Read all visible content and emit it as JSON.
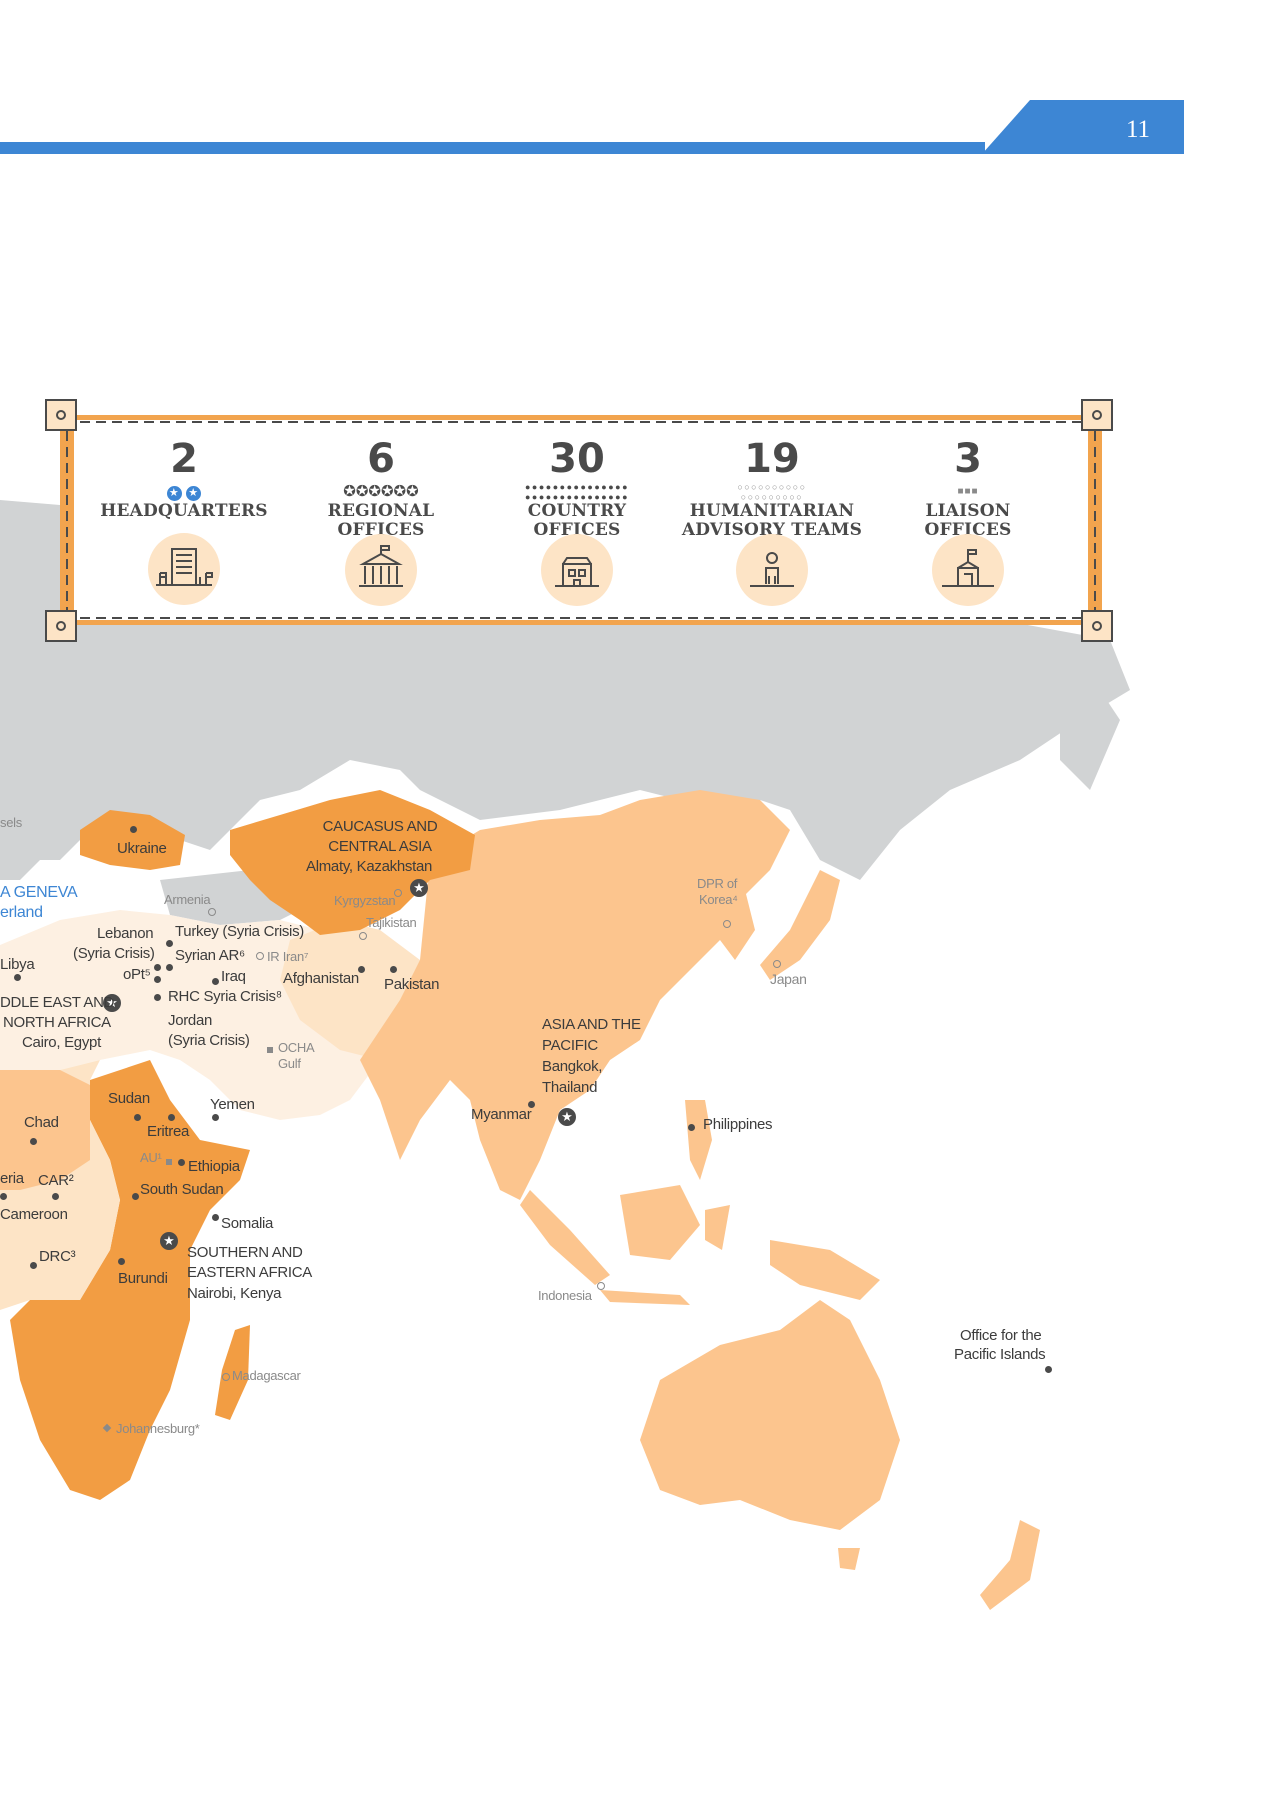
{
  "page": {
    "number": "11",
    "accent_color": "#3d86d4"
  },
  "legend": {
    "frame_color": "#f2a44e",
    "items": [
      {
        "count": "2",
        "label_line1": "HEADQUARTERS",
        "label_line2": "",
        "marker": "blue-star",
        "icon": "headquarters-building-icon",
        "mark_count": 2
      },
      {
        "count": "6",
        "label_line1": "REGIONAL",
        "label_line2": "OFFICES",
        "marker": "star",
        "icon": "regional-office-building-icon",
        "mark_count": 6
      },
      {
        "count": "30",
        "label_line1": "COUNTRY",
        "label_line2": "OFFICES",
        "marker": "dot",
        "icon": "country-office-building-icon",
        "mark_count": 30
      },
      {
        "count": "19",
        "label_line1": "HUMANITARIAN",
        "label_line2": "ADVISORY TEAMS",
        "marker": "open-dot",
        "icon": "advisor-person-icon",
        "mark_count": 19
      },
      {
        "count": "3",
        "label_line1": "LIAISON",
        "label_line2": "OFFICES",
        "marker": "square",
        "icon": "liaison-office-icon",
        "mark_count": 3
      }
    ]
  },
  "map": {
    "colors": {
      "land_grey": "#d1d3d4",
      "region_dark": "#f29d43",
      "region_mid": "#fcc58e",
      "region_light": "#fde4c6",
      "region_pale": "#fdf0e2"
    },
    "labels": {
      "brussels": "sels",
      "geneva_1": "A GENEVA",
      "geneva_2": "erland",
      "ukraine": "Ukraine",
      "armenia": "Armenia",
      "libya": "Libya",
      "lebanon_1": "Lebanon",
      "lebanon_2": "(Syria Crisis)",
      "turkey": "Turkey (Syria Crisis)",
      "syria": "Syrian AR⁶",
      "iran": "IR Iran⁷",
      "opt": "oPt⁵",
      "iraq": "Iraq",
      "afghanistan": "Afghanistan",
      "pakistan": "Pakistan",
      "rhc": "RHC Syria Crisis⁸",
      "jordan_1": "Jordan",
      "jordan_2": "(Syria Crisis)",
      "mena_1": "DDLE EAST AND",
      "mena_2": "NORTH AFRICA",
      "mena_3": "Cairo, Egypt",
      "ocha_gulf_1": "OCHA",
      "ocha_gulf_2": "Gulf",
      "caucasus_1": "CAUCASUS AND",
      "caucasus_2": "CENTRAL ASIA",
      "caucasus_3": "Almaty, Kazakhstan",
      "kyrgyzstan": "Kyrgyzstan",
      "tajikistan": "Tajikistan",
      "dprk_1": "DPR of",
      "dprk_2": "Korea⁴",
      "japan": "Japan",
      "ap_1": "ASIA AND THE",
      "ap_2": "PACIFIC",
      "ap_3": "Bangkok,",
      "ap_4": "Thailand",
      "myanmar": "Myanmar",
      "philippines": "Philippines",
      "indonesia": "Indonesia",
      "pacific_1": "Office for the",
      "pacific_2": "Pacific Islands",
      "sudan": "Sudan",
      "chad": "Chad",
      "eritrea": "Eritrea",
      "yemen": "Yemen",
      "au": "AU¹",
      "ethiopia": "Ethiopia",
      "south_sudan": "South Sudan",
      "nigeria": "eria",
      "car": "CAR²",
      "cameroon": "Cameroon",
      "somalia": "Somalia",
      "drc": "DRC³",
      "burundi": "Burundi",
      "sea_1": "SOUTHERN AND",
      "sea_2": "EASTERN AFRICA",
      "sea_3": "Nairobi, Kenya",
      "madagascar": "Madagascar",
      "johannesburg": "Johannesburg*"
    }
  }
}
